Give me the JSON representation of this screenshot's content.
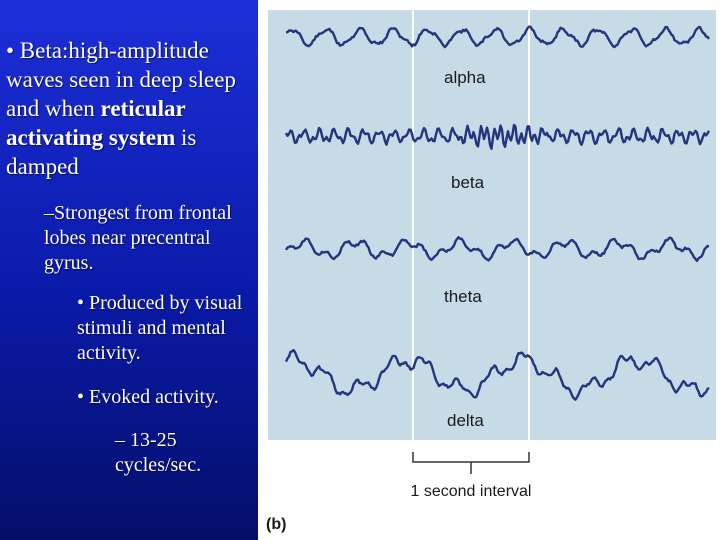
{
  "slide_text": {
    "bullet_1_prefix": "• Beta:high-amplitude waves seen in deep sleep and when ",
    "bullet_1_bold": "reticular activating system",
    "bullet_1_suffix": " is damped",
    "sub_1": "–Strongest from frontal lobes near precentral gyrus.",
    "bullet_2": "• Produced by visual stimuli and mental activity.",
    "bullet_3": "• Evoked activity.",
    "sub_2": "– 13-25 cycles/sec."
  },
  "figure": {
    "panel_bg": "#c7dbe7",
    "wave_color": "#24347f",
    "waves": [
      {
        "label": "alpha"
      },
      {
        "label": "beta"
      },
      {
        "label": "theta"
      },
      {
        "label": "delta"
      }
    ],
    "interval_label": "1 second interval",
    "panel_label": "(b)"
  },
  "colors": {
    "slide_bg_top": "#1d2fd8",
    "slide_bg_bottom": "#050f6a",
    "text": "#ffffff"
  }
}
